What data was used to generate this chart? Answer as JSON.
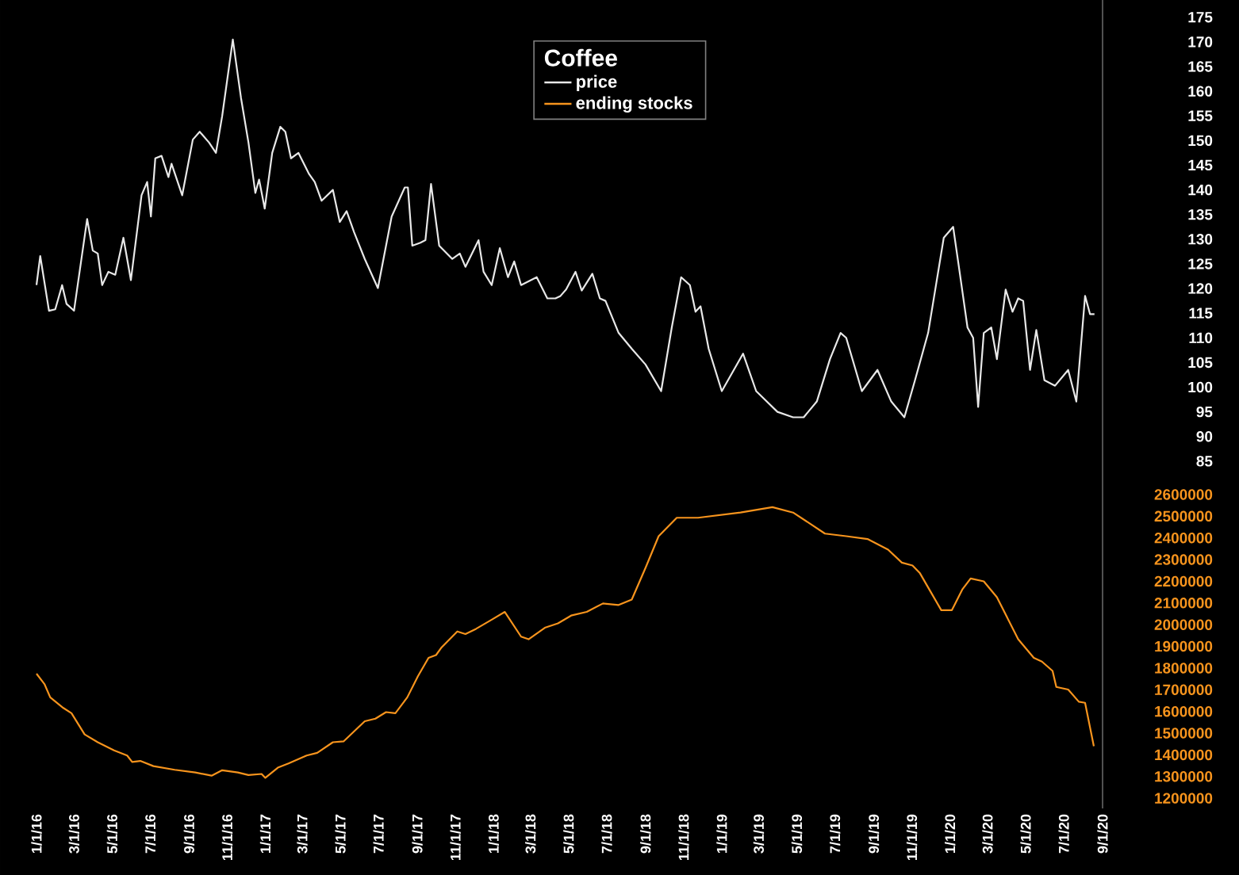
{
  "chart_data": {
    "type": "line",
    "legend_title": "Coffee",
    "legend": "top",
    "xlim": [
      "2016-01-01",
      "2020-09-01"
    ],
    "xticks": [
      {
        "value": "2016-01-01",
        "label": "1/1/16"
      },
      {
        "value": "2016-03-01",
        "label": "3/1/16"
      },
      {
        "value": "2016-05-01",
        "label": "5/1/16"
      },
      {
        "value": "2016-07-01",
        "label": "7/1/16"
      },
      {
        "value": "2016-09-01",
        "label": "9/1/16"
      },
      {
        "value": "2016-11-01",
        "label": "11/1/16"
      },
      {
        "value": "2017-01-01",
        "label": "1/1/17"
      },
      {
        "value": "2017-03-01",
        "label": "3/1/17"
      },
      {
        "value": "2017-05-01",
        "label": "5/1/17"
      },
      {
        "value": "2017-07-01",
        "label": "7/1/17"
      },
      {
        "value": "2017-09-01",
        "label": "9/1/17"
      },
      {
        "value": "2017-11-01",
        "label": "11/1/17"
      },
      {
        "value": "2018-01-01",
        "label": "1/1/18"
      },
      {
        "value": "2018-03-01",
        "label": "3/1/18"
      },
      {
        "value": "2018-05-01",
        "label": "5/1/18"
      },
      {
        "value": "2018-07-01",
        "label": "7/1/18"
      },
      {
        "value": "2018-09-01",
        "label": "9/1/18"
      },
      {
        "value": "2018-11-01",
        "label": "11/1/18"
      },
      {
        "value": "2019-01-01",
        "label": "1/1/19"
      },
      {
        "value": "2019-03-01",
        "label": "3/1/19"
      },
      {
        "value": "2019-05-01",
        "label": "5/1/19"
      },
      {
        "value": "2019-07-01",
        "label": "7/1/19"
      },
      {
        "value": "2019-09-01",
        "label": "9/1/19"
      },
      {
        "value": "2019-11-01",
        "label": "11/1/19"
      },
      {
        "value": "2020-01-01",
        "label": "1/1/20"
      },
      {
        "value": "2020-03-01",
        "label": "3/1/20"
      },
      {
        "value": "2020-05-01",
        "label": "5/1/20"
      },
      {
        "value": "2020-07-01",
        "label": "7/1/20"
      },
      {
        "value": "2020-09-01",
        "label": "9/1/20"
      }
    ],
    "ylim": [
      14.6,
      178.5
    ],
    "yticks": [
      85,
      90,
      95,
      100,
      105,
      110,
      115,
      120,
      125,
      130,
      135,
      140,
      145,
      150,
      155,
      160,
      165,
      170,
      175
    ],
    "y2lim": [
      1153000,
      4880000
    ],
    "y2ticks": [
      1200000,
      1300000,
      1400000,
      1500000,
      1600000,
      1700000,
      1800000,
      1900000,
      2000000,
      2100000,
      2200000,
      2300000,
      2400000,
      2500000,
      2600000
    ],
    "series": [
      {
        "name": "price",
        "color": "#e8e8e8",
        "axis": "y",
        "x": [
          "2016-01-01",
          "2016-01-07",
          "2016-01-21",
          "2016-01-31",
          "2016-02-11",
          "2016-02-18",
          "2016-03-01",
          "2016-03-22",
          "2016-03-31",
          "2016-04-08",
          "2016-04-15",
          "2016-04-25",
          "2016-05-06",
          "2016-05-19",
          "2016-05-31",
          "2016-06-17",
          "2016-06-26",
          "2016-07-02",
          "2016-07-09",
          "2016-07-19",
          "2016-07-30",
          "2016-08-04",
          "2016-08-21",
          "2016-09-07",
          "2016-09-18",
          "2016-10-03",
          "2016-10-14",
          "2016-10-24",
          "2016-11-10",
          "2016-11-23",
          "2016-12-05",
          "2016-12-16",
          "2016-12-22",
          "2016-12-31",
          "2017-01-12",
          "2017-01-25",
          "2017-02-02",
          "2017-02-11",
          "2017-02-23",
          "2017-03-12",
          "2017-03-21",
          "2017-04-01",
          "2017-04-19",
          "2017-04-30",
          "2017-05-11",
          "2017-05-23",
          "2017-06-09",
          "2017-06-30",
          "2017-07-22",
          "2017-08-12",
          "2017-08-17",
          "2017-08-24",
          "2017-09-06",
          "2017-09-14",
          "2017-09-23",
          "2017-10-06",
          "2017-10-27",
          "2017-11-08",
          "2017-11-17",
          "2017-12-08",
          "2017-12-16",
          "2017-12-29",
          "2018-01-11",
          "2018-01-24",
          "2018-02-03",
          "2018-02-14",
          "2018-03-11",
          "2018-03-28",
          "2018-04-10",
          "2018-04-18",
          "2018-04-27",
          "2018-05-12",
          "2018-05-22",
          "2018-06-08",
          "2018-06-20",
          "2018-06-29",
          "2018-07-20",
          "2018-08-10",
          "2018-09-01",
          "2018-09-26",
          "2018-10-13",
          "2018-10-28",
          "2018-11-11",
          "2018-11-20",
          "2018-11-28",
          "2018-12-11",
          "2019-01-01",
          "2019-02-04",
          "2019-02-25",
          "2019-03-31",
          "2019-04-25",
          "2019-05-12",
          "2019-06-02",
          "2019-06-23",
          "2019-07-10",
          "2019-07-19",
          "2019-08-13",
          "2019-09-07",
          "2019-09-29",
          "2019-10-20",
          "2019-11-06",
          "2019-11-27",
          "2019-12-22",
          "2020-01-06",
          "2020-01-17",
          "2020-01-29",
          "2020-02-07",
          "2020-02-15",
          "2020-02-24",
          "2020-03-07",
          "2020-03-16",
          "2020-03-30",
          "2020-04-10",
          "2020-04-19",
          "2020-04-27",
          "2020-05-08",
          "2020-05-18",
          "2020-05-31",
          "2020-06-17",
          "2020-07-08",
          "2020-07-21",
          "2020-08-04",
          "2020-08-12",
          "2020-08-19"
        ],
        "values": [
          120.7,
          126.6,
          115.5,
          115.8,
          120.7,
          116.9,
          115.5,
          134.1,
          127.7,
          127.1,
          120.7,
          123.4,
          122.8,
          130.3,
          121.7,
          138.9,
          141.6,
          134.6,
          146.4,
          146.9,
          142.6,
          145.3,
          138.9,
          150.2,
          151.8,
          149.6,
          147.5,
          155.0,
          170.5,
          158.7,
          149.6,
          139.4,
          142.1,
          136.2,
          147.5,
          152.8,
          151.8,
          146.4,
          147.5,
          143.2,
          141.6,
          137.8,
          140.0,
          133.5,
          135.7,
          131.4,
          126.0,
          120.1,
          134.6,
          140.5,
          140.5,
          128.7,
          129.3,
          129.8,
          141.2,
          128.7,
          126.0,
          127.1,
          124.4,
          129.8,
          123.4,
          120.7,
          128.2,
          122.3,
          125.5,
          120.7,
          122.3,
          118.0,
          118.0,
          118.5,
          119.8,
          123.4,
          119.6,
          123.0,
          118.0,
          117.5,
          111.0,
          107.8,
          104.6,
          99.2,
          112.1,
          122.3,
          120.7,
          115.3,
          116.4,
          107.8,
          99.2,
          106.8,
          99.2,
          95.0,
          93.9,
          93.9,
          97.1,
          105.7,
          111.0,
          110.0,
          99.2,
          103.5,
          97.1,
          93.9,
          101.4,
          111.0,
          130.3,
          132.5,
          122.8,
          112.1,
          110.0,
          96.0,
          111.0,
          112.1,
          105.7,
          119.8,
          115.3,
          118.0,
          117.5,
          103.5,
          111.6,
          101.4,
          100.3,
          103.5,
          97.1,
          118.5,
          114.8,
          114.8
        ]
      },
      {
        "name": "ending stocks",
        "color": "#f7941d",
        "axis": "y2",
        "x": [
          "2016-01-01",
          "2016-01-14",
          "2016-01-23",
          "2016-02-13",
          "2016-02-26",
          "2016-03-18",
          "2016-04-08",
          "2016-05-04",
          "2016-05-25",
          "2016-06-02",
          "2016-06-15",
          "2016-07-06",
          "2016-08-09",
          "2016-09-11",
          "2016-10-07",
          "2016-10-24",
          "2016-11-18",
          "2016-12-05",
          "2016-12-26",
          "2017-01-01",
          "2017-01-21",
          "2017-02-07",
          "2017-03-08",
          "2017-03-25",
          "2017-04-19",
          "2017-05-06",
          "2017-06-09",
          "2017-06-26",
          "2017-07-13",
          "2017-07-28",
          "2017-08-16",
          "2017-09-02",
          "2017-09-19",
          "2017-10-01",
          "2017-10-10",
          "2017-11-04",
          "2017-11-17",
          "2017-12-04",
          "2017-12-29",
          "2018-01-19",
          "2018-02-14",
          "2018-02-26",
          "2018-03-24",
          "2018-04-14",
          "2018-05-05",
          "2018-05-30",
          "2018-06-25",
          "2018-07-20",
          "2018-08-10",
          "2018-09-01",
          "2018-09-22",
          "2018-10-21",
          "2018-11-24",
          "2018-12-28",
          "2019-01-31",
          "2019-03-23",
          "2019-04-25",
          "2019-05-21",
          "2019-06-15",
          "2019-07-19",
          "2019-08-22",
          "2019-09-24",
          "2019-10-16",
          "2019-11-02",
          "2019-11-14",
          "2019-12-01",
          "2019-12-18",
          "2020-01-04",
          "2020-01-21",
          "2020-02-03",
          "2020-02-24",
          "2020-03-16",
          "2020-04-02",
          "2020-04-19",
          "2020-05-14",
          "2020-05-27",
          "2020-06-13",
          "2020-06-19",
          "2020-07-08",
          "2020-07-25",
          "2020-08-04",
          "2020-08-18"
        ],
        "values": [
          1774000,
          1725000,
          1665000,
          1616000,
          1592000,
          1494000,
          1458000,
          1421000,
          1397000,
          1367000,
          1372000,
          1348000,
          1331000,
          1319000,
          1304000,
          1329000,
          1319000,
          1307000,
          1312000,
          1294000,
          1341000,
          1360000,
          1397000,
          1409000,
          1458000,
          1462000,
          1555000,
          1567000,
          1597000,
          1592000,
          1665000,
          1762000,
          1847000,
          1860000,
          1896000,
          1969000,
          1957000,
          1981000,
          2023000,
          2059000,
          1945000,
          1933000,
          1986000,
          2006000,
          2042000,
          2059000,
          2098000,
          2091000,
          2116000,
          2262000,
          2408000,
          2493000,
          2493000,
          2505000,
          2517000,
          2542000,
          2517000,
          2468000,
          2420000,
          2408000,
          2395000,
          2346000,
          2286000,
          2273000,
          2237000,
          2152000,
          2067000,
          2067000,
          2164000,
          2213000,
          2200000,
          2127000,
          2030000,
          1933000,
          1847000,
          1830000,
          1787000,
          1713000,
          1701000,
          1645000,
          1640000,
          1440000
        ]
      }
    ]
  }
}
